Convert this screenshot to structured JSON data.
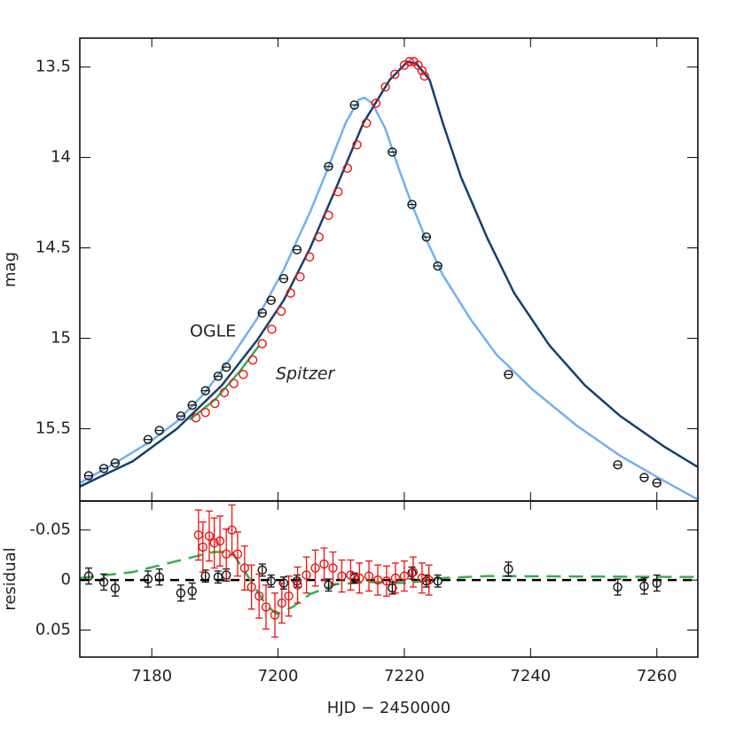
{
  "chart_data": [
    {
      "type": "line",
      "ylabel": "mag",
      "annotations": [
        "OGLE",
        "Spitzer"
      ],
      "xlim": [
        7168.6,
        7266.5
      ],
      "xticks": [
        7180,
        7200,
        7220,
        7240,
        7260
      ],
      "ylim": [
        15.9,
        13.34
      ],
      "yticks": [
        13.5,
        14,
        14.5,
        15,
        15.5
      ],
      "series": [
        {
          "color": "#72b0ee",
          "mode": "line",
          "x": [
            7168.6,
            7174.2,
            7179.8,
            7184.0,
            7188.2,
            7192.5,
            7196.7,
            7200.9,
            7205.1,
            7207.9,
            7210.7,
            7212.8,
            7213.7,
            7214.9,
            7217.0,
            7219.1,
            7221.2,
            7223.3,
            7226.1,
            7230.4,
            7234.6,
            7240.2,
            7247.2,
            7254.2,
            7261.2,
            7266.4
          ],
          "values": [
            15.8,
            15.69,
            15.57,
            15.46,
            15.31,
            15.11,
            14.89,
            14.62,
            14.3,
            14.06,
            13.81,
            13.68,
            13.67,
            13.7,
            13.84,
            14.06,
            14.26,
            14.44,
            14.65,
            14.89,
            15.09,
            15.28,
            15.48,
            15.65,
            15.79,
            15.89
          ]
        },
        {
          "color": "#15406e",
          "mode": "line",
          "x": [
            7168.6,
            7177.0,
            7184.0,
            7191.1,
            7196.7,
            7200.9,
            7205.1,
            7209.3,
            7213.5,
            7217.7,
            7220.5,
            7221.9,
            7224.0,
            7226.1,
            7229.0,
            7233.2,
            7237.4,
            7243.0,
            7248.6,
            7254.2,
            7261.2,
            7266.4
          ],
          "values": [
            15.82,
            15.68,
            15.5,
            15.26,
            15.01,
            14.79,
            14.5,
            14.16,
            13.81,
            13.57,
            13.47,
            13.48,
            13.57,
            13.81,
            14.11,
            14.45,
            14.75,
            15.04,
            15.26,
            15.43,
            15.6,
            15.71
          ]
        },
        {
          "color": "#33b050",
          "mode": "line",
          "x": [
            7186.0,
            7190.0,
            7194.0,
            7197.0
          ],
          "values": [
            15.45,
            15.34,
            15.18,
            15.04
          ]
        },
        {
          "color": "#111111",
          "mode": "markers",
          "x": [
            7170.0,
            7172.4,
            7174.2,
            7179.4,
            7181.2,
            7184.6,
            7186.4,
            7188.5,
            7190.5,
            7191.8,
            7197.5,
            7198.9,
            7200.9,
            7203.0,
            7208.0,
            7212.1,
            7218.1,
            7221.2,
            7223.5,
            7225.3,
            7236.5,
            7253.8,
            7258.0,
            7260.0
          ],
          "values": [
            15.76,
            15.72,
            15.69,
            15.56,
            15.51,
            15.43,
            15.37,
            15.29,
            15.21,
            15.16,
            14.86,
            14.79,
            14.67,
            14.51,
            14.05,
            13.71,
            13.97,
            14.26,
            14.44,
            14.6,
            15.2,
            15.7,
            15.77,
            15.8
          ]
        },
        {
          "color": "#ee1111",
          "mode": "markers",
          "x": [
            7187.0,
            7188.5,
            7190.0,
            7191.5,
            7193.0,
            7194.5,
            7196.0,
            7197.5,
            7199.0,
            7200.5,
            7202.0,
            7203.5,
            7205.0,
            7206.5,
            7208.0,
            7209.5,
            7211.0,
            7212.5,
            7214.0,
            7215.5,
            7217.0,
            7218.5,
            7220.0,
            7220.8,
            7221.5,
            7222.2,
            7222.8,
            7223.2
          ],
          "values": [
            15.44,
            15.41,
            15.36,
            15.3,
            15.25,
            15.2,
            15.12,
            15.03,
            14.95,
            14.85,
            14.75,
            14.66,
            14.55,
            14.44,
            14.32,
            14.19,
            14.06,
            13.93,
            13.81,
            13.7,
            13.61,
            13.54,
            13.49,
            13.47,
            13.47,
            13.49,
            13.52,
            13.55
          ]
        }
      ]
    },
    {
      "type": "errorbar",
      "xlabel": "HJD − 2450000",
      "ylabel": "residual",
      "xlim": [
        7168.6,
        7266.5
      ],
      "xticks": [
        7180,
        7200,
        7220,
        7240,
        7260
      ],
      "ylim": [
        0.077,
        -0.079
      ],
      "yticks": [
        -0.05,
        0,
        0.05
      ],
      "reference_line": 0,
      "series": [
        {
          "color": "#33b050",
          "mode": "dashed",
          "x": [
            7168.6,
            7177.0,
            7184.0,
            7189.7,
            7192.7,
            7195.2,
            7198.1,
            7199.8,
            7202.3,
            7205.1,
            7209.3,
            7214.9,
            7220.5,
            7226.1,
            7233.2,
            7266.4
          ],
          "values": [
            -0.002,
            -0.008,
            -0.019,
            -0.028,
            -0.028,
            -0.004,
            0.025,
            0.034,
            0.027,
            0.014,
            0.004,
            0.002,
            0.003,
            -0.002,
            -0.004,
            -0.003
          ]
        },
        {
          "color": "#111111",
          "mode": "markers",
          "x": [
            7170.0,
            7172.4,
            7174.2,
            7179.4,
            7181.2,
            7184.6,
            7186.4,
            7188.5,
            7190.5,
            7191.8,
            7197.5,
            7198.9,
            7200.9,
            7203.0,
            7208.0,
            7212.1,
            7218.1,
            7221.2,
            7223.5,
            7225.3,
            7236.5,
            7253.8,
            7258.0,
            7260.0
          ],
          "values": [
            -0.004,
            0.002,
            0.008,
            -0.001,
            -0.003,
            0.013,
            0.011,
            -0.004,
            -0.003,
            -0.005,
            -0.01,
            0.001,
            0.003,
            0.001,
            0.005,
            -0.002,
            0.008,
            -0.007,
            0.001,
            0.001,
            -0.011,
            0.007,
            0.006,
            0.003
          ],
          "errors": [
            0.008,
            0.008,
            0.008,
            0.008,
            0.008,
            0.008,
            0.008,
            0.006,
            0.006,
            0.006,
            0.006,
            0.006,
            0.006,
            0.006,
            0.006,
            0.005,
            0.006,
            0.006,
            0.006,
            0.006,
            0.007,
            0.008,
            0.008,
            0.008
          ]
        },
        {
          "color": "#ee1111",
          "mode": "markers",
          "x": [
            7187.4,
            7188.1,
            7189.1,
            7189.9,
            7190.8,
            7191.8,
            7192.7,
            7193.6,
            7194.7,
            7195.8,
            7197.0,
            7198.1,
            7199.5,
            7200.6,
            7201.7,
            7203.1,
            7204.5,
            7205.9,
            7207.3,
            7208.7,
            7210.1,
            7211.5,
            7212.9,
            7214.4,
            7215.8,
            7217.2,
            7218.6,
            7220.0,
            7221.4,
            7222.8,
            7223.9
          ],
          "values": [
            -0.045,
            -0.033,
            -0.044,
            -0.037,
            -0.039,
            -0.026,
            -0.05,
            -0.026,
            -0.012,
            0.007,
            0.016,
            0.027,
            0.035,
            0.023,
            0.016,
            0.005,
            -0.005,
            -0.012,
            -0.016,
            -0.012,
            -0.004,
            -0.005,
            -0.002,
            -0.004,
            0,
            0.001,
            -0.002,
            -0.004,
            -0.008,
            -0.002,
            0
          ],
          "errors": [
            0.025,
            0.025,
            0.025,
            0.025,
            0.025,
            0.025,
            0.025,
            0.022,
            0.022,
            0.022,
            0.022,
            0.022,
            0.022,
            0.02,
            0.02,
            0.018,
            0.018,
            0.018,
            0.016,
            0.016,
            0.016,
            0.015,
            0.015,
            0.015,
            0.015,
            0.015,
            0.015,
            0.015,
            0.015,
            0.015,
            0.015
          ]
        }
      ]
    }
  ]
}
